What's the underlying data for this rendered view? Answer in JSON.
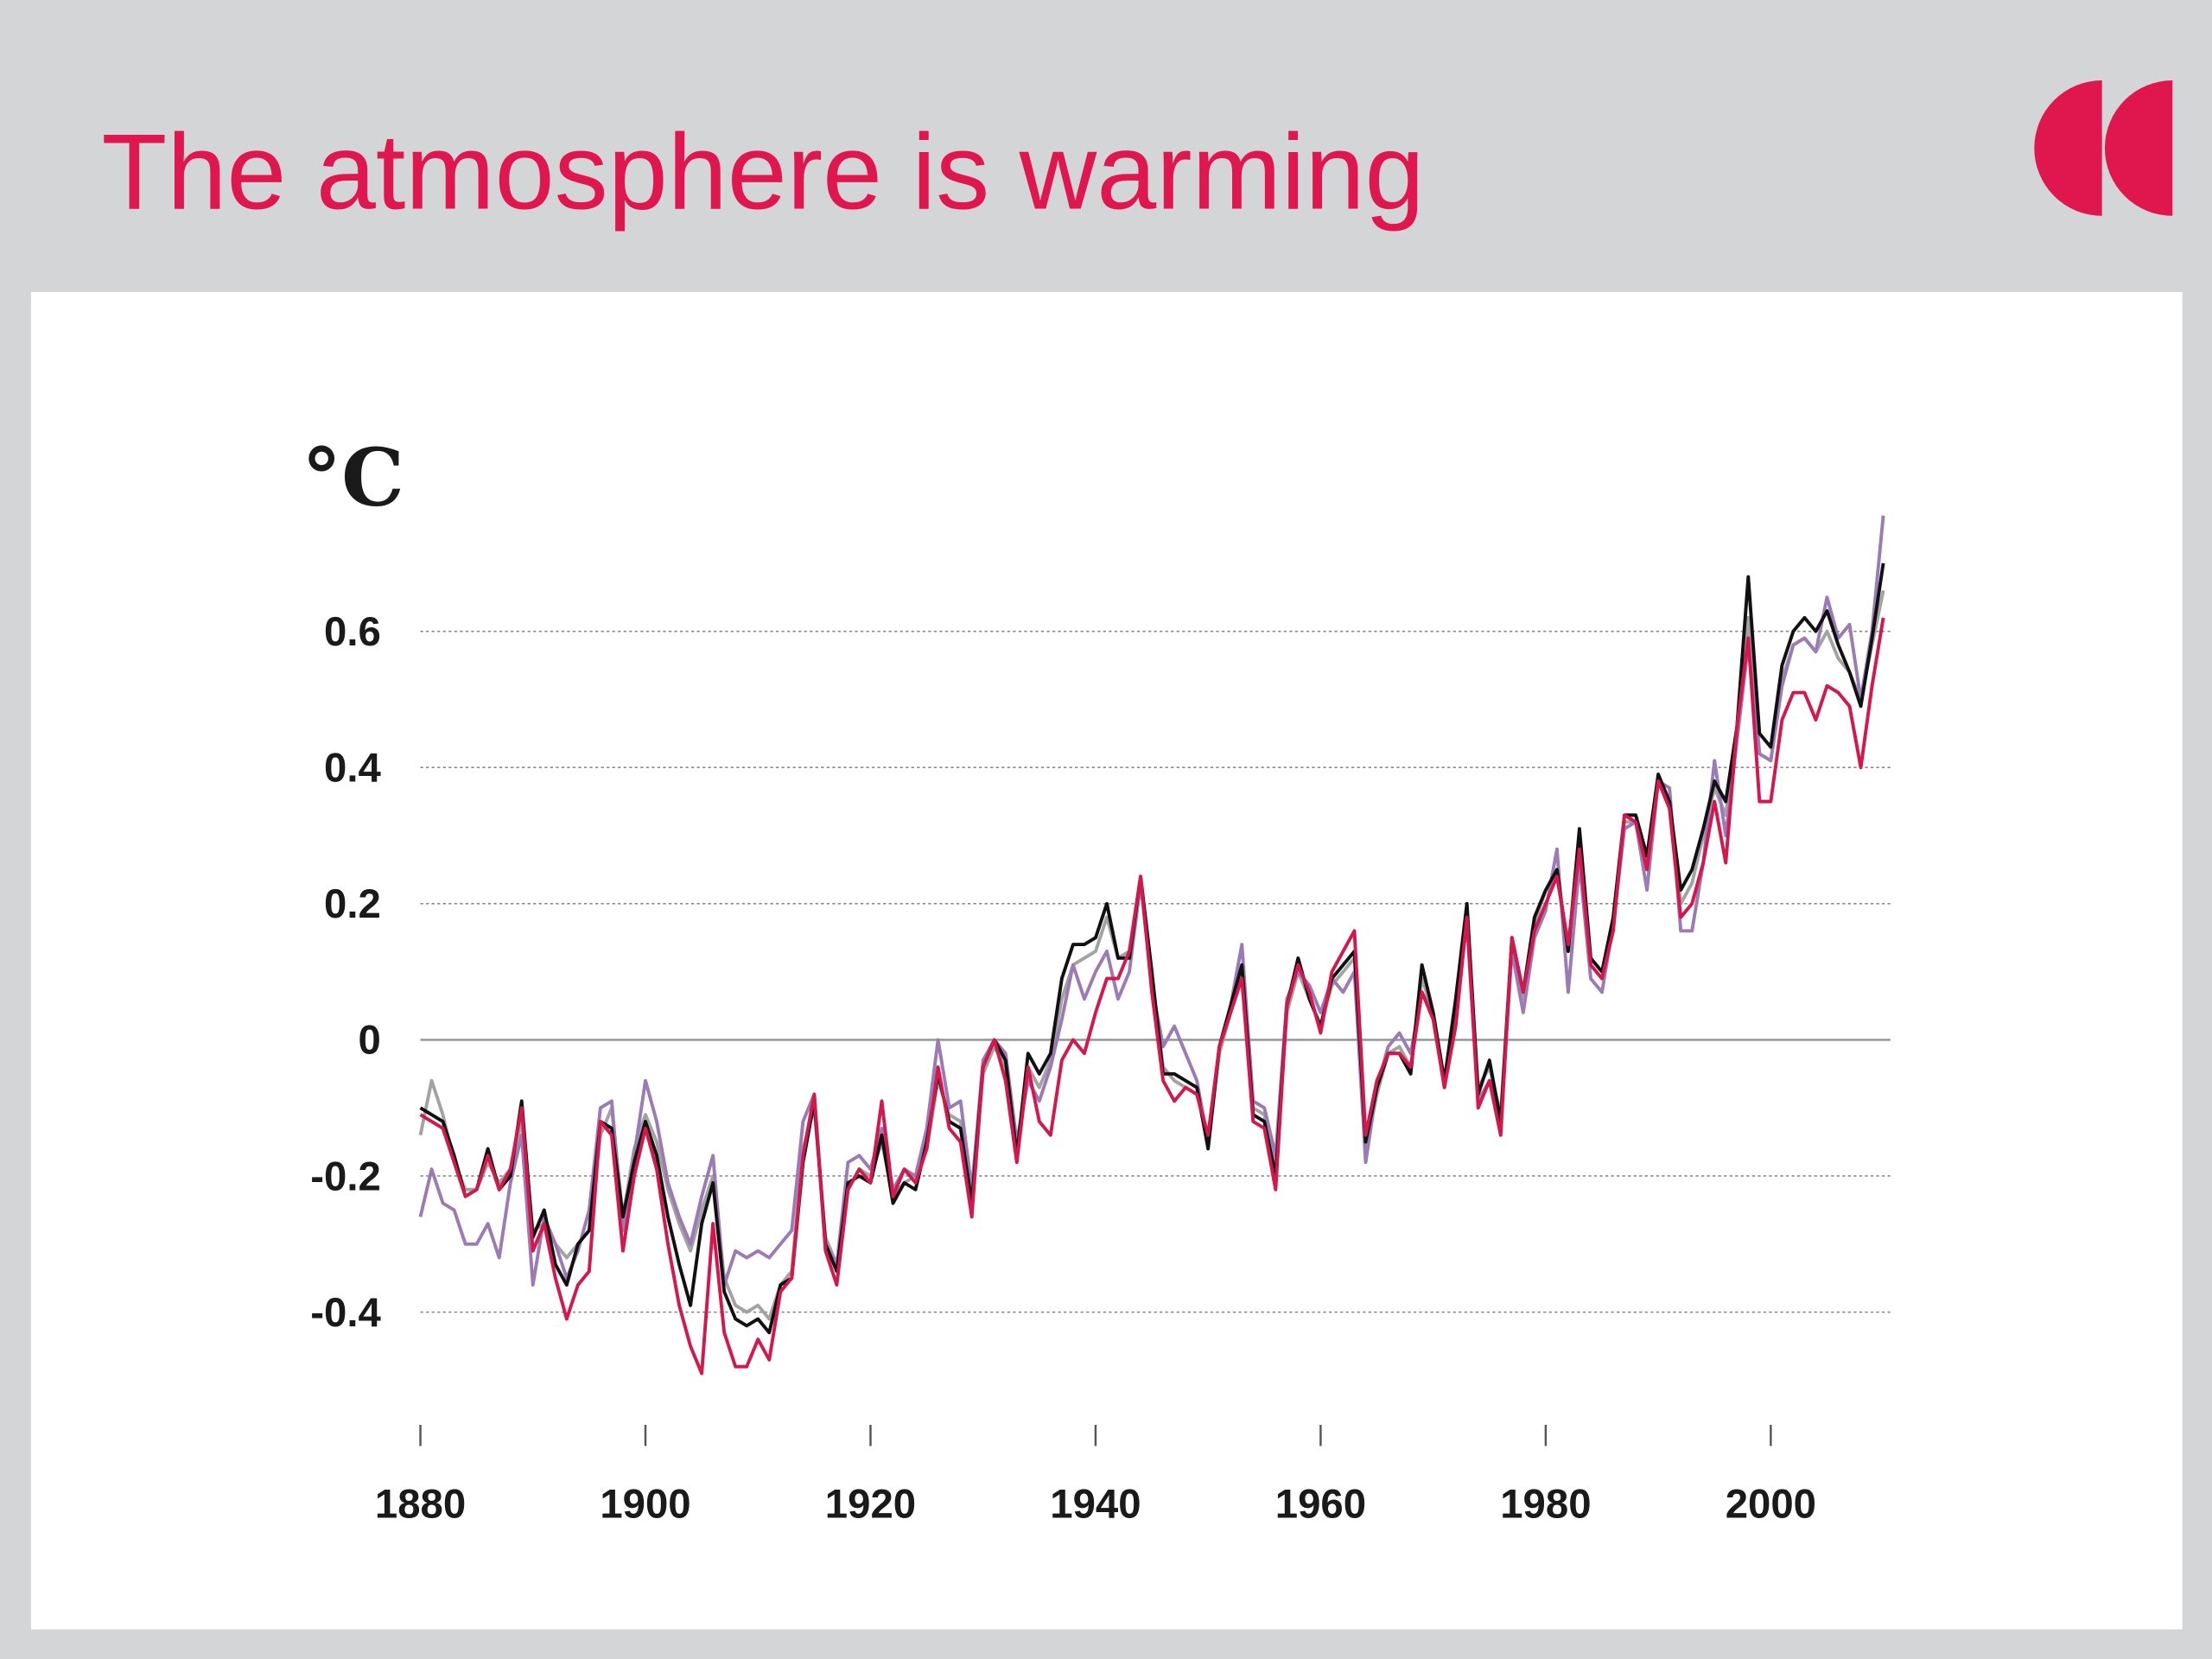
{
  "chart_data": {
    "type": "line",
    "title": "The atmosphere is warming",
    "y_label": "°C",
    "x": [
      1880,
      1881,
      1882,
      1883,
      1884,
      1885,
      1886,
      1887,
      1888,
      1889,
      1890,
      1891,
      1892,
      1893,
      1894,
      1895,
      1896,
      1897,
      1898,
      1899,
      1900,
      1901,
      1902,
      1903,
      1904,
      1905,
      1906,
      1907,
      1908,
      1909,
      1910,
      1911,
      1912,
      1913,
      1914,
      1915,
      1916,
      1917,
      1918,
      1919,
      1920,
      1921,
      1922,
      1923,
      1924,
      1925,
      1926,
      1927,
      1928,
      1929,
      1930,
      1931,
      1932,
      1933,
      1934,
      1935,
      1936,
      1937,
      1938,
      1939,
      1940,
      1941,
      1942,
      1943,
      1944,
      1945,
      1946,
      1947,
      1948,
      1949,
      1950,
      1951,
      1952,
      1953,
      1954,
      1955,
      1956,
      1957,
      1958,
      1959,
      1960,
      1961,
      1962,
      1963,
      1964,
      1965,
      1966,
      1967,
      1968,
      1969,
      1970,
      1971,
      1972,
      1973,
      1974,
      1975,
      1976,
      1977,
      1978,
      1979,
      1980,
      1981,
      1982,
      1983,
      1984,
      1985,
      1986,
      1987,
      1988,
      1989,
      1990,
      1991,
      1992,
      1993,
      1994,
      1995,
      1996,
      1997,
      1998,
      1999,
      2000,
      2001,
      2002,
      2003,
      2004,
      2005,
      2006,
      2007,
      2008,
      2009,
      2010
    ],
    "series": [
      {
        "color": "#a3a3a3",
        "values": [
          -0.14,
          -0.06,
          -0.11,
          -0.18,
          -0.22,
          -0.22,
          -0.18,
          -0.21,
          -0.19,
          -0.12,
          -0.28,
          -0.27,
          -0.3,
          -0.32,
          -0.3,
          -0.28,
          -0.14,
          -0.1,
          -0.26,
          -0.16,
          -0.11,
          -0.15,
          -0.22,
          -0.27,
          -0.31,
          -0.25,
          -0.2,
          -0.35,
          -0.39,
          -0.4,
          -0.39,
          -0.41,
          -0.36,
          -0.34,
          -0.16,
          -0.1,
          -0.29,
          -0.33,
          -0.22,
          -0.19,
          -0.2,
          -0.15,
          -0.23,
          -0.21,
          -0.2,
          -0.16,
          -0.06,
          -0.11,
          -0.12,
          -0.23,
          -0.05,
          -0.01,
          -0.04,
          -0.16,
          -0.04,
          -0.07,
          -0.03,
          0.06,
          0.11,
          0.12,
          0.13,
          0.18,
          0.12,
          0.13,
          0.23,
          0.09,
          -0.04,
          -0.06,
          -0.07,
          -0.08,
          -0.15,
          -0.02,
          0.04,
          0.1,
          -0.1,
          -0.11,
          -0.19,
          0.04,
          0.1,
          0.06,
          0.02,
          0.08,
          0.1,
          0.12,
          -0.16,
          -0.08,
          -0.02,
          -0.01,
          -0.04,
          0.09,
          0.04,
          -0.07,
          0.05,
          0.18,
          -0.07,
          -0.04,
          -0.11,
          0.14,
          0.06,
          0.17,
          0.22,
          0.24,
          0.14,
          0.28,
          0.11,
          0.09,
          0.17,
          0.32,
          0.32,
          0.26,
          0.38,
          0.34,
          0.2,
          0.23,
          0.3,
          0.37,
          0.33,
          0.46,
          0.62,
          0.42,
          0.41,
          0.53,
          0.58,
          0.59,
          0.57,
          0.6,
          0.56,
          0.54,
          0.5,
          0.58,
          0.66
        ]
      },
      {
        "color": "#9b7bb5",
        "values": [
          -0.26,
          -0.19,
          -0.24,
          -0.25,
          -0.3,
          -0.3,
          -0.27,
          -0.32,
          -0.21,
          -0.14,
          -0.36,
          -0.26,
          -0.3,
          -0.35,
          -0.31,
          -0.25,
          -0.1,
          -0.09,
          -0.28,
          -0.17,
          -0.06,
          -0.12,
          -0.21,
          -0.26,
          -0.3,
          -0.23,
          -0.17,
          -0.36,
          -0.31,
          -0.32,
          -0.31,
          -0.32,
          -0.3,
          -0.28,
          -0.12,
          -0.08,
          -0.3,
          -0.33,
          -0.18,
          -0.17,
          -0.19,
          -0.13,
          -0.22,
          -0.19,
          -0.2,
          -0.13,
          0.0,
          -0.1,
          -0.09,
          -0.22,
          -0.03,
          0.0,
          -0.02,
          -0.15,
          -0.06,
          -0.09,
          -0.04,
          0.03,
          0.11,
          0.06,
          0.1,
          0.13,
          0.06,
          0.1,
          0.23,
          0.08,
          -0.01,
          0.02,
          -0.02,
          -0.06,
          -0.15,
          -0.01,
          0.05,
          0.14,
          -0.09,
          -0.1,
          -0.17,
          0.06,
          0.1,
          0.08,
          0.04,
          0.09,
          0.07,
          0.1,
          -0.18,
          -0.07,
          -0.01,
          0.01,
          -0.02,
          0.07,
          0.04,
          -0.07,
          0.05,
          0.17,
          -0.09,
          -0.06,
          -0.12,
          0.13,
          0.04,
          0.15,
          0.19,
          0.28,
          0.07,
          0.26,
          0.09,
          0.07,
          0.17,
          0.31,
          0.32,
          0.22,
          0.38,
          0.37,
          0.16,
          0.16,
          0.26,
          0.41,
          0.3,
          0.44,
          0.58,
          0.42,
          0.41,
          0.52,
          0.58,
          0.59,
          0.57,
          0.65,
          0.59,
          0.61,
          0.5,
          0.6,
          0.77
        ]
      },
      {
        "color": "#111111",
        "values": [
          -0.1,
          -0.11,
          -0.12,
          -0.17,
          -0.23,
          -0.22,
          -0.16,
          -0.22,
          -0.2,
          -0.09,
          -0.29,
          -0.25,
          -0.33,
          -0.36,
          -0.3,
          -0.28,
          -0.12,
          -0.13,
          -0.26,
          -0.18,
          -0.12,
          -0.17,
          -0.26,
          -0.33,
          -0.39,
          -0.27,
          -0.21,
          -0.37,
          -0.41,
          -0.42,
          -0.41,
          -0.43,
          -0.36,
          -0.35,
          -0.18,
          -0.09,
          -0.3,
          -0.34,
          -0.21,
          -0.2,
          -0.21,
          -0.14,
          -0.24,
          -0.21,
          -0.22,
          -0.15,
          -0.05,
          -0.12,
          -0.13,
          -0.24,
          -0.04,
          0.0,
          -0.03,
          -0.17,
          -0.02,
          -0.05,
          -0.02,
          0.09,
          0.14,
          0.14,
          0.15,
          0.2,
          0.12,
          0.12,
          0.24,
          0.1,
          -0.05,
          -0.05,
          -0.06,
          -0.07,
          -0.16,
          -0.01,
          0.05,
          0.11,
          -0.11,
          -0.12,
          -0.2,
          0.05,
          0.12,
          0.06,
          0.02,
          0.09,
          0.11,
          0.13,
          -0.15,
          -0.07,
          -0.02,
          -0.02,
          -0.05,
          0.11,
          0.04,
          -0.06,
          0.06,
          0.2,
          -0.08,
          -0.03,
          -0.12,
          0.15,
          0.07,
          0.18,
          0.22,
          0.25,
          0.13,
          0.31,
          0.12,
          0.1,
          0.18,
          0.33,
          0.33,
          0.27,
          0.39,
          0.35,
          0.22,
          0.25,
          0.31,
          0.38,
          0.35,
          0.46,
          0.68,
          0.45,
          0.43,
          0.55,
          0.6,
          0.62,
          0.6,
          0.63,
          0.58,
          0.54,
          0.49,
          0.59,
          0.7
        ]
      },
      {
        "color": "#d4174d",
        "values": [
          -0.11,
          -0.12,
          -0.13,
          -0.18,
          -0.23,
          -0.22,
          -0.17,
          -0.22,
          -0.19,
          -0.1,
          -0.31,
          -0.27,
          -0.35,
          -0.41,
          -0.36,
          -0.34,
          -0.12,
          -0.14,
          -0.31,
          -0.2,
          -0.13,
          -0.19,
          -0.3,
          -0.39,
          -0.45,
          -0.49,
          -0.27,
          -0.43,
          -0.48,
          -0.48,
          -0.44,
          -0.47,
          -0.37,
          -0.35,
          -0.17,
          -0.08,
          -0.31,
          -0.36,
          -0.22,
          -0.19,
          -0.21,
          -0.09,
          -0.23,
          -0.19,
          -0.21,
          -0.16,
          -0.04,
          -0.13,
          -0.15,
          -0.26,
          -0.04,
          0.0,
          -0.06,
          -0.18,
          -0.04,
          -0.12,
          -0.14,
          -0.03,
          0.0,
          -0.02,
          0.04,
          0.09,
          0.09,
          0.13,
          0.24,
          0.07,
          -0.06,
          -0.09,
          -0.07,
          -0.08,
          -0.14,
          -0.01,
          0.04,
          0.09,
          -0.12,
          -0.13,
          -0.22,
          0.05,
          0.11,
          0.07,
          0.01,
          0.1,
          0.13,
          0.16,
          -0.14,
          -0.06,
          -0.02,
          -0.02,
          -0.04,
          0.07,
          0.03,
          -0.07,
          0.02,
          0.18,
          -0.1,
          -0.06,
          -0.14,
          0.15,
          0.07,
          0.16,
          0.2,
          0.24,
          0.14,
          0.28,
          0.11,
          0.09,
          0.16,
          0.33,
          0.32,
          0.25,
          0.38,
          0.34,
          0.18,
          0.2,
          0.26,
          0.35,
          0.26,
          0.46,
          0.59,
          0.35,
          0.35,
          0.47,
          0.51,
          0.51,
          0.47,
          0.52,
          0.51,
          0.49,
          0.4,
          0.52,
          0.62
        ]
      }
    ],
    "xlim": [
      1880,
      2010
    ],
    "xticks": [
      1880,
      1900,
      1920,
      1940,
      1960,
      1980,
      2000
    ],
    "ylim": [
      -0.58,
      0.8
    ],
    "yticks": [
      -0.4,
      -0.2,
      0,
      0.2,
      0.4,
      0.6
    ],
    "grid": true,
    "title_color": "#e0174f"
  }
}
